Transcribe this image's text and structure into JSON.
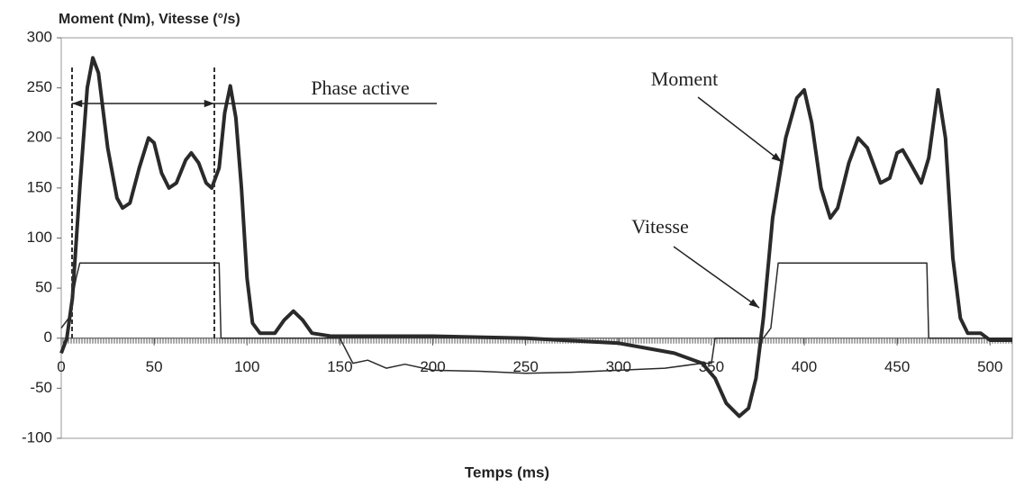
{
  "chart_data": {
    "type": "line",
    "title": "Moment (Nm), Vitesse (°/s)",
    "x_label": "Temps (ms)",
    "annotations": [
      "Phase active"
    ],
    "xlim": [
      0,
      512
    ],
    "xticks": [
      0,
      50,
      100,
      150,
      200,
      250,
      300,
      350,
      400,
      450,
      500
    ],
    "ylim": [
      -100,
      300
    ],
    "yticks": [
      -100,
      -50,
      0,
      50,
      100,
      150,
      200,
      250,
      300
    ],
    "grid": false,
    "series": [
      {
        "name": "Moment",
        "color": "#2a2a2a",
        "x": [
          0,
          3,
          6,
          10,
          14,
          17,
          20,
          25,
          30,
          33,
          37,
          42,
          47,
          50,
          54,
          58,
          62,
          67,
          70,
          74,
          78,
          81,
          85,
          88,
          91,
          94,
          97,
          100,
          103,
          107,
          115,
          120,
          125,
          130,
          135,
          145,
          160,
          200,
          250,
          300,
          330,
          345,
          352,
          358,
          365,
          370,
          374,
          378,
          383,
          390,
          396,
          400,
          404,
          409,
          414,
          418,
          424,
          429,
          434,
          441,
          446,
          450,
          453,
          457,
          463,
          467,
          472,
          476,
          480,
          484,
          488,
          495,
          500,
          512
        ],
        "values": [
          -15,
          0,
          40,
          150,
          250,
          280,
          265,
          190,
          140,
          130,
          135,
          170,
          200,
          195,
          165,
          150,
          155,
          178,
          185,
          175,
          155,
          150,
          170,
          225,
          252,
          220,
          150,
          60,
          15,
          5,
          5,
          18,
          27,
          18,
          5,
          2,
          2,
          2,
          0,
          -5,
          -15,
          -25,
          -40,
          -65,
          -78,
          -70,
          -40,
          20,
          120,
          200,
          240,
          248,
          215,
          150,
          120,
          130,
          175,
          200,
          190,
          155,
          160,
          185,
          188,
          175,
          155,
          180,
          248,
          200,
          80,
          20,
          5,
          5,
          -2,
          -2
        ]
      },
      {
        "name": "Vitesse",
        "color": "#2a2a2a",
        "x": [
          0,
          4,
          8,
          10,
          85,
          86,
          150,
          157,
          165,
          175,
          185,
          200,
          225,
          250,
          275,
          300,
          325,
          345,
          350,
          352,
          378,
          382,
          386,
          466,
          467,
          512
        ],
        "values": [
          10,
          20,
          60,
          75,
          75,
          0,
          0,
          -25,
          -22,
          -30,
          -26,
          -32,
          -33,
          -35,
          -34,
          -32,
          -30,
          -25,
          -25,
          0,
          0,
          10,
          75,
          75,
          0,
          0
        ]
      }
    ]
  }
}
